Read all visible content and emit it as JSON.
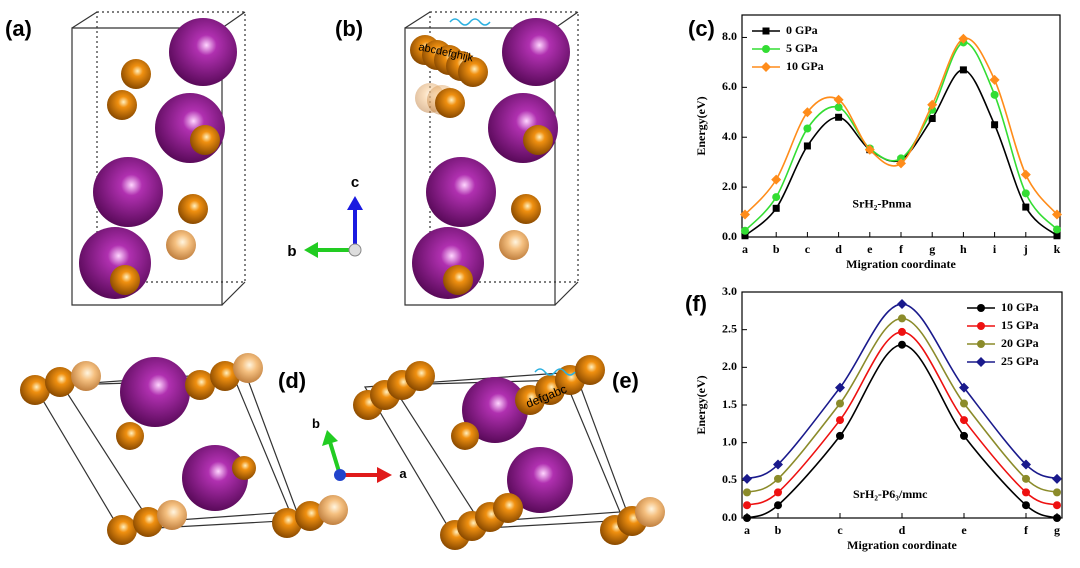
{
  "panels": {
    "a": "(a)",
    "b": "(b)",
    "d": "(d)",
    "e": "(e)"
  },
  "triad_1": [
    "c",
    "b"
  ],
  "triad_2": [
    "b",
    "a"
  ],
  "paths": [
    "abcdefghijk",
    "defgabc"
  ],
  "chart_data": [
    {
      "type": "line",
      "label": "(c)",
      "annotation": "SrH₂-Pnma",
      "x_label": "Migration coordinate",
      "y_label": "Energy(eV)",
      "categories": [
        "a",
        "b",
        "c",
        "d",
        "e",
        "f",
        "g",
        "h",
        "i",
        "j",
        "k"
      ],
      "series": [
        {
          "name": "0 GPa",
          "color": "#000000",
          "marker": "square",
          "values": [
            0.05,
            1.15,
            3.65,
            4.8,
            3.5,
            3.1,
            4.75,
            6.7,
            4.5,
            1.2,
            0.05
          ]
        },
        {
          "name": "5 GPa",
          "color": "#33dd33",
          "marker": "circle",
          "values": [
            0.25,
            1.6,
            4.35,
            5.2,
            3.55,
            3.15,
            5.1,
            7.8,
            5.7,
            1.75,
            0.3
          ]
        },
        {
          "name": "10 GPa",
          "color": "#ff8c1a",
          "marker": "diamond",
          "values": [
            0.9,
            2.3,
            5.0,
            5.5,
            3.5,
            2.95,
            5.3,
            7.95,
            6.3,
            2.5,
            0.9
          ]
        }
      ],
      "ylim": [
        0,
        8.9
      ],
      "yticks": [
        {
          "value": 0,
          "label": "0.0"
        },
        {
          "value": 2,
          "label": "2.0"
        },
        {
          "value": 4,
          "label": "4.0"
        },
        {
          "value": 6,
          "label": "6.0"
        },
        {
          "value": 8,
          "label": "8.0"
        }
      ],
      "legend": "upper left"
    },
    {
      "type": "line",
      "label": "(f)",
      "annotation": "SrH₂-P6₃/mmc",
      "x_label": "Migration coordinate",
      "y_label": "Energy(eV)",
      "categories": [
        "a",
        "b",
        "c",
        "d",
        "e",
        "f",
        "g"
      ],
      "series": [
        {
          "name": "10 GPa",
          "color": "#000000",
          "marker": "circle",
          "values": [
            0.0,
            0.17,
            1.09,
            2.3,
            1.09,
            0.17,
            0.0
          ]
        },
        {
          "name": "15 GPa",
          "color": "#ee1111",
          "marker": "circle",
          "values": [
            0.17,
            0.34,
            1.3,
            2.47,
            1.3,
            0.34,
            0.17
          ]
        },
        {
          "name": "20 GPa",
          "color": "#8b8b2a",
          "marker": "circle",
          "values": [
            0.34,
            0.52,
            1.52,
            2.65,
            1.52,
            0.52,
            0.34
          ]
        },
        {
          "name": "25 GPa",
          "color": "#1a1a8c",
          "marker": "diamond",
          "values": [
            0.52,
            0.71,
            1.73,
            2.84,
            1.73,
            0.71,
            0.52
          ]
        }
      ],
      "ylim": [
        0,
        3.0
      ],
      "yticks": [
        {
          "value": 0,
          "label": "0.0"
        },
        0.5,
        {
          "value": 1,
          "label": "1.0"
        },
        1.5,
        {
          "value": 2,
          "label": "2.0"
        },
        2.5,
        {
          "value": 3,
          "label": "3.0"
        }
      ],
      "legend": "upper right"
    }
  ]
}
